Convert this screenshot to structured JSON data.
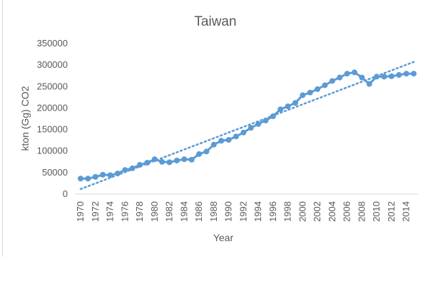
{
  "chart_data": {
    "type": "line",
    "title": "Taiwan",
    "xlabel": "Year",
    "ylabel": "kton (Gg) CO2",
    "ylim": [
      0,
      350000
    ],
    "yticks": [
      0,
      50000,
      100000,
      150000,
      200000,
      250000,
      300000,
      350000
    ],
    "xticks": [
      1970,
      1972,
      1974,
      1976,
      1978,
      1980,
      1982,
      1984,
      1986,
      1988,
      1990,
      1992,
      1994,
      1996,
      1998,
      2000,
      2002,
      2004,
      2006,
      2008,
      2010,
      2012,
      2014
    ],
    "grid": false,
    "legend": "none",
    "trendline": "linear",
    "series": [
      {
        "color": "#5b9bd5",
        "x": [
          1970,
          1971,
          1972,
          1973,
          1974,
          1975,
          1976,
          1977,
          1978,
          1979,
          1980,
          1981,
          1982,
          1983,
          1984,
          1985,
          1986,
          1987,
          1988,
          1989,
          1990,
          1991,
          1992,
          1993,
          1994,
          1995,
          1996,
          1997,
          1998,
          1999,
          2000,
          2001,
          2002,
          2003,
          2004,
          2005,
          2006,
          2007,
          2008,
          2009,
          2010,
          2011,
          2012,
          2013,
          2014,
          2015
        ],
        "values": [
          36000,
          36000,
          40000,
          45000,
          44000,
          48000,
          56000,
          60000,
          68000,
          73000,
          81000,
          75000,
          74000,
          78000,
          81000,
          80000,
          93000,
          99000,
          115000,
          124000,
          126000,
          134000,
          143000,
          154000,
          163000,
          171000,
          181000,
          197000,
          204000,
          212000,
          230000,
          236000,
          244000,
          253000,
          263000,
          271000,
          280000,
          283000,
          271000,
          256000,
          273000,
          273000,
          274000,
          277000,
          280000,
          280000
        ]
      }
    ]
  }
}
